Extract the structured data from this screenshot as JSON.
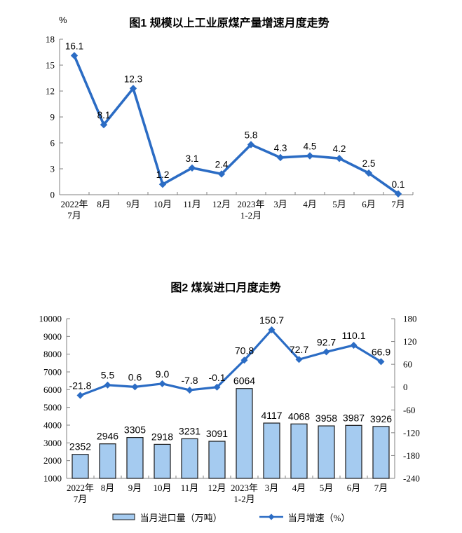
{
  "colors": {
    "line_blue": "#2B6CC4",
    "bar_fill": "#A5CBF0",
    "bar_border": "#1a1a1a",
    "axis_gray": "#808080",
    "text": "#000000",
    "background": "#ffffff"
  },
  "chart_data": [
    {
      "type": "line",
      "title": "图1  规模以上工业原煤产量增速月度走势",
      "ylabel": "%",
      "xlabel": "",
      "categories": [
        [
          "2022年",
          "7月"
        ],
        [
          "8月"
        ],
        [
          "9月"
        ],
        [
          "10月"
        ],
        [
          "11月"
        ],
        [
          "12月"
        ],
        [
          "2023年",
          "1-2月"
        ],
        [
          "3月"
        ],
        [
          "4月"
        ],
        [
          "5月"
        ],
        [
          "6月"
        ],
        [
          "7月"
        ]
      ],
      "values": [
        16.1,
        8.1,
        12.3,
        1.2,
        3.1,
        2.4,
        5.8,
        4.3,
        4.5,
        4.2,
        2.5,
        0.1
      ],
      "ylim": [
        0,
        18
      ],
      "yticks": [
        0,
        3,
        6,
        9,
        12,
        15,
        18
      ],
      "grid": false,
      "legend_position": "none",
      "marker": "diamond"
    },
    {
      "type": "bar+line",
      "title": "图2  煤炭进口月度走势",
      "xlabel": "",
      "categories": [
        [
          "2022年",
          "7月"
        ],
        [
          "8月"
        ],
        [
          "9月"
        ],
        [
          "10月"
        ],
        [
          "11月"
        ],
        [
          "12月"
        ],
        [
          "2023年",
          "1-2月"
        ],
        [
          "3月"
        ],
        [
          "4月"
        ],
        [
          "5月"
        ],
        [
          "6月"
        ],
        [
          "7月"
        ]
      ],
      "series": [
        {
          "name": "当月进口量（万吨）",
          "type": "bar",
          "axis": "left",
          "values": [
            2352,
            2946,
            3305,
            2918,
            3231,
            3091,
            6064,
            4117,
            4068,
            3958,
            3987,
            3926
          ]
        },
        {
          "name": "当月增速（%）",
          "type": "line",
          "axis": "right",
          "values": [
            -21.8,
            5.5,
            0.6,
            9.0,
            -7.8,
            -0.1,
            70.8,
            150.7,
            72.7,
            92.7,
            110.1,
            66.9
          ]
        }
      ],
      "left_ylim": [
        1000,
        10000
      ],
      "left_ticks": [
        1000,
        2000,
        3000,
        4000,
        5000,
        6000,
        7000,
        8000,
        9000,
        10000
      ],
      "right_ylim": [
        -240,
        180
      ],
      "right_ticks": [
        -240,
        -180,
        -120,
        -60,
        0,
        60,
        120,
        180
      ],
      "grid": false,
      "legend_position": "bottom",
      "marker": "diamond"
    }
  ]
}
